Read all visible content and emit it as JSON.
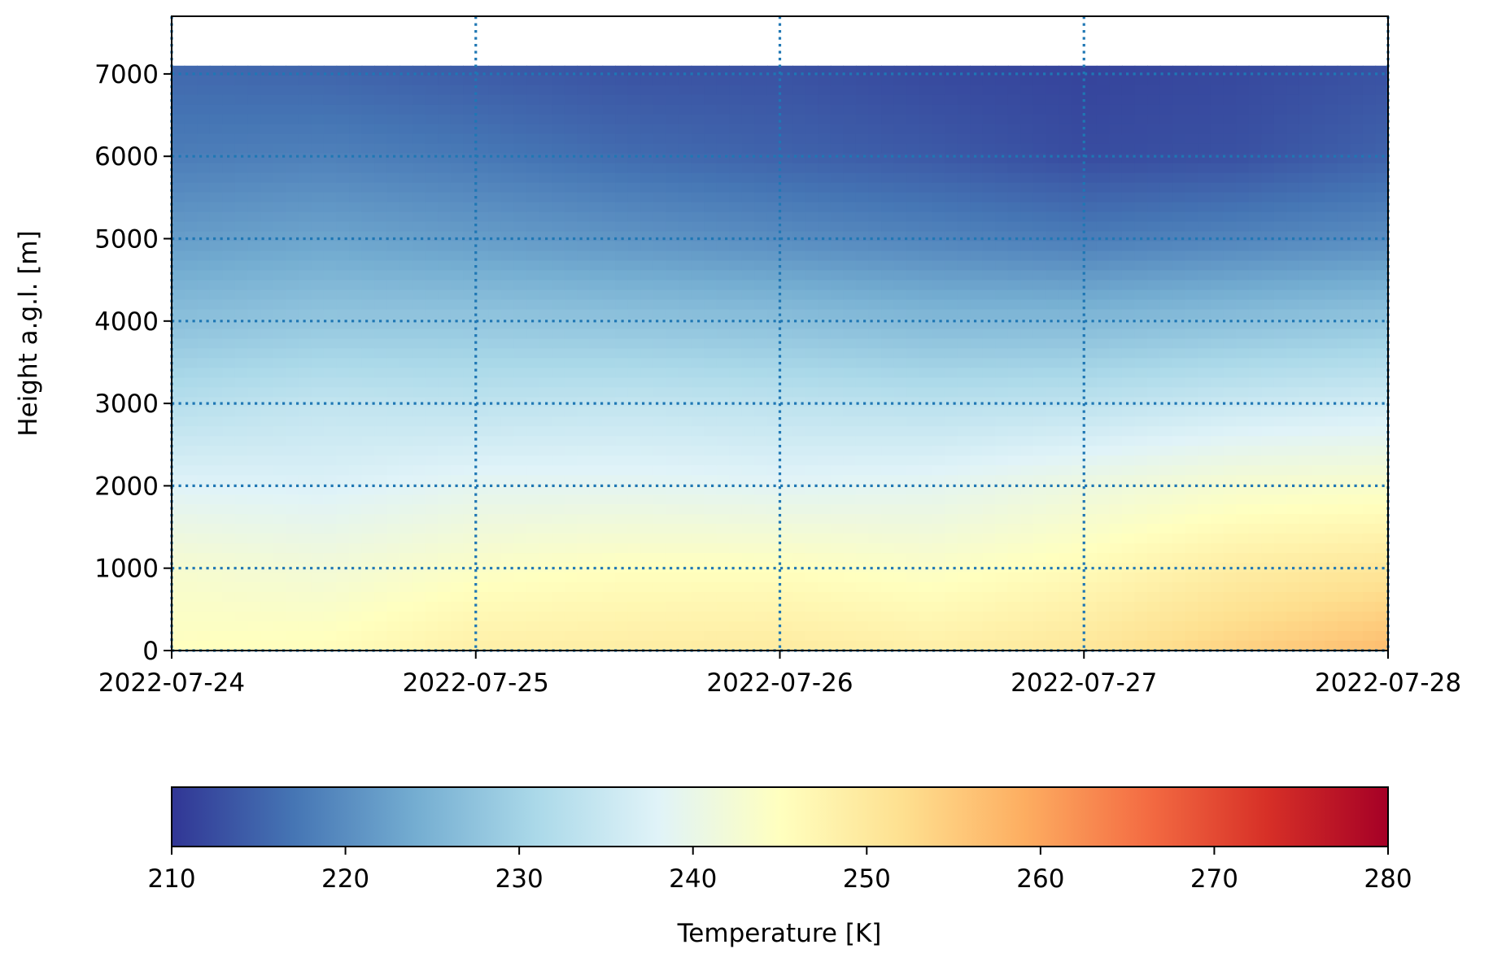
{
  "chart_data": {
    "type": "heatmap",
    "title": "",
    "xlabel": "",
    "ylabel": "Height a.g.l. [m]",
    "x_ticks": [
      "2022-07-24",
      "2022-07-25",
      "2022-07-26",
      "2022-07-27",
      "2022-07-28"
    ],
    "xlim": [
      "2022-07-24",
      "2022-07-28"
    ],
    "y_ticks": [
      0,
      1000,
      2000,
      3000,
      4000,
      5000,
      6000,
      7000
    ],
    "ylim": [
      0,
      7700
    ],
    "data_top": 7100,
    "grid": true,
    "grid_style": "dotted",
    "grid_color": "#1f77b4",
    "colorbar": {
      "label": "Temperature [K]",
      "ticks": [
        210,
        220,
        230,
        240,
        250,
        260,
        270,
        280
      ],
      "range": [
        210,
        280
      ],
      "orientation": "horizontal",
      "placement": "bottom",
      "colormap": "RdYlBu_r",
      "colors": [
        "#313695",
        "#4575b4",
        "#74add1",
        "#abd9e9",
        "#e0f3f8",
        "#ffffbf",
        "#fee090",
        "#fdae61",
        "#f46d43",
        "#d73027",
        "#a50026"
      ]
    },
    "sample_dates": [
      "2022-07-24",
      "2022-07-24T12",
      "2022-07-25",
      "2022-07-25T12",
      "2022-07-26",
      "2022-07-26T12",
      "2022-07-27",
      "2022-07-27T12",
      "2022-07-28"
    ],
    "sample_heights": [
      0,
      1000,
      2000,
      3000,
      4000,
      5000,
      6000,
      7100
    ],
    "temperatures": [
      [
        245.0,
        243.0,
        238.0,
        232.5,
        227.0,
        222.0,
        218.0,
        215.5
      ],
      [
        245.5,
        242.0,
        237.5,
        234.0,
        228.0,
        223.0,
        218.5,
        215.0
      ],
      [
        248.5,
        244.0,
        239.0,
        233.5,
        228.0,
        222.0,
        217.5,
        214.0
      ],
      [
        249.0,
        245.0,
        239.0,
        234.0,
        227.5,
        221.0,
        216.0,
        213.0
      ],
      [
        249.5,
        245.0,
        238.5,
        233.5,
        227.0,
        220.0,
        215.0,
        213.0
      ],
      [
        248.5,
        244.0,
        239.0,
        233.0,
        226.0,
        219.0,
        214.0,
        212.0
      ],
      [
        250.5,
        246.0,
        241.0,
        233.5,
        226.0,
        218.0,
        212.5,
        211.5
      ],
      [
        254.0,
        249.0,
        243.0,
        235.0,
        227.0,
        219.0,
        213.0,
        212.0
      ],
      [
        257.0,
        250.5,
        243.5,
        236.0,
        228.0,
        220.0,
        215.0,
        213.0
      ]
    ]
  }
}
